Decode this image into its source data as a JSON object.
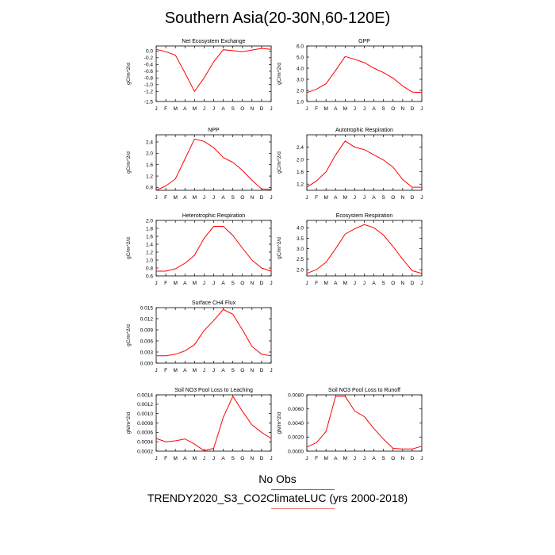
{
  "title": "Southern Asia(20-30N,60-120E)",
  "legend": [
    {
      "label": "No Obs",
      "color": "#5a6fd6"
    },
    {
      "label": "TRENDY2020_S3_CO2ClimateLUC (yrs 2000-2018)",
      "color": "#f08080"
    }
  ],
  "chart_data": [
    {
      "type": "line",
      "title": "Net Ecosystem Exchange",
      "ylabel": "gC/m^2/d",
      "categories": [
        "J",
        "F",
        "M",
        "A",
        "M",
        "J",
        "J",
        "A",
        "S",
        "O",
        "N",
        "D",
        "J"
      ],
      "ylim": [
        -1.5,
        0.15
      ],
      "yticks": [
        "0.0",
        "-0.2",
        "-0.4",
        "-0.6",
        "-0.8",
        "-1.0",
        "-1.2",
        "-1.5"
      ],
      "ytick_values": [
        0.0,
        -0.2,
        -0.4,
        -0.6,
        -0.8,
        -1.0,
        -1.2,
        -1.5
      ],
      "series": [
        {
          "color": "#ff0000",
          "values": [
            0.05,
            -0.02,
            -0.12,
            -0.65,
            -1.2,
            -0.8,
            -0.32,
            0.04,
            0.01,
            -0.02,
            0.03,
            0.08,
            0.05
          ]
        }
      ]
    },
    {
      "type": "line",
      "title": "GPP",
      "ylabel": "gC/m^2/d",
      "categories": [
        "J",
        "F",
        "M",
        "A",
        "M",
        "J",
        "J",
        "A",
        "S",
        "O",
        "N",
        "D",
        "J"
      ],
      "ylim": [
        1.0,
        6.0
      ],
      "yticks": [
        "6.0",
        "5.0",
        "4.0",
        "3.0",
        "2.0",
        "1.0"
      ],
      "ytick_values": [
        6.0,
        5.0,
        4.0,
        3.0,
        2.0,
        1.0
      ],
      "series": [
        {
          "color": "#ff0000",
          "values": [
            1.8,
            2.1,
            2.6,
            3.8,
            5.05,
            4.8,
            4.5,
            4.0,
            3.6,
            3.1,
            2.4,
            1.85,
            1.8
          ]
        }
      ]
    },
    {
      "type": "line",
      "title": "NPP",
      "ylabel": "gC/m^2/d",
      "categories": [
        "J",
        "F",
        "M",
        "A",
        "M",
        "J",
        "J",
        "A",
        "S",
        "O",
        "N",
        "D",
        "J"
      ],
      "ylim": [
        0.7,
        2.65
      ],
      "yticks": [
        "2.4",
        "2.0",
        "1.6",
        "1.2",
        "0.8"
      ],
      "ytick_values": [
        2.4,
        2.0,
        1.6,
        1.2,
        0.8
      ],
      "series": [
        {
          "color": "#ff0000",
          "values": [
            0.7,
            0.85,
            1.1,
            1.8,
            2.5,
            2.42,
            2.2,
            1.85,
            1.68,
            1.4,
            1.05,
            0.75,
            0.72
          ]
        }
      ]
    },
    {
      "type": "line",
      "title": "Autotrophic Respiration",
      "ylabel": "gC/m^2/d",
      "categories": [
        "J",
        "F",
        "M",
        "A",
        "M",
        "J",
        "J",
        "A",
        "S",
        "O",
        "N",
        "D",
        "J"
      ],
      "ylim": [
        1.0,
        2.8
      ],
      "yticks": [
        "2.4",
        "2.0",
        "1.6",
        "1.2"
      ],
      "ytick_values": [
        2.4,
        2.0,
        1.6,
        1.2
      ],
      "series": [
        {
          "color": "#ff0000",
          "values": [
            1.1,
            1.3,
            1.6,
            2.15,
            2.6,
            2.4,
            2.32,
            2.15,
            1.98,
            1.75,
            1.35,
            1.1,
            1.1
          ]
        }
      ]
    },
    {
      "type": "line",
      "title": "Heterotrophic Respiration",
      "ylabel": "gC/m^2/d",
      "categories": [
        "J",
        "F",
        "M",
        "A",
        "M",
        "J",
        "J",
        "A",
        "S",
        "O",
        "N",
        "D",
        "J"
      ],
      "ylim": [
        0.6,
        2.0
      ],
      "yticks": [
        "2.0",
        "1.8",
        "1.6",
        "1.4",
        "1.2",
        "1.0",
        "0.8",
        "0.6"
      ],
      "ytick_values": [
        2.0,
        1.8,
        1.6,
        1.4,
        1.2,
        1.0,
        0.8,
        0.6
      ],
      "series": [
        {
          "color": "#ff0000",
          "values": [
            0.72,
            0.72,
            0.78,
            0.92,
            1.12,
            1.55,
            1.85,
            1.85,
            1.62,
            1.3,
            1.0,
            0.8,
            0.72
          ]
        }
      ]
    },
    {
      "type": "line",
      "title": "Ecosystem Respiration",
      "ylabel": "gC/m^2/d",
      "categories": [
        "J",
        "F",
        "M",
        "A",
        "M",
        "J",
        "J",
        "A",
        "S",
        "O",
        "N",
        "D",
        "J"
      ],
      "ylim": [
        1.7,
        4.35
      ],
      "yticks": [
        "4.0",
        "3.5",
        "3.0",
        "2.5",
        "2.0"
      ],
      "ytick_values": [
        4.0,
        3.5,
        3.0,
        2.5,
        2.0
      ],
      "series": [
        {
          "color": "#ff0000",
          "values": [
            1.82,
            2.0,
            2.35,
            3.0,
            3.7,
            3.95,
            4.15,
            4.0,
            3.65,
            3.1,
            2.5,
            1.95,
            1.82
          ]
        }
      ]
    },
    {
      "type": "line",
      "title": "Surface CH4 Flux",
      "ylabel": "gC/m^2/d",
      "categories": [
        "J",
        "F",
        "M",
        "A",
        "M",
        "J",
        "J",
        "A",
        "S",
        "O",
        "N",
        "D",
        "J"
      ],
      "ylim": [
        0.0,
        0.015
      ],
      "yticks": [
        "0.015",
        "0.012",
        "0.009",
        "0.006",
        "0.003",
        "0.000"
      ],
      "ytick_values": [
        0.015,
        0.012,
        0.009,
        0.006,
        0.003,
        0.0
      ],
      "series": [
        {
          "color": "#ff0000",
          "values": [
            0.002,
            0.002,
            0.0024,
            0.0033,
            0.005,
            0.0088,
            0.0115,
            0.0145,
            0.0132,
            0.009,
            0.0045,
            0.0024,
            0.002
          ]
        }
      ]
    },
    {
      "type": "line",
      "title": "Soil NO3 Pool Loss to Leaching",
      "ylabel": "gN/m^2/d",
      "categories": [
        "J",
        "F",
        "M",
        "A",
        "M",
        "J",
        "J",
        "A",
        "S",
        "O",
        "N",
        "D",
        "J"
      ],
      "ylim": [
        0.0002,
        0.0014
      ],
      "yticks": [
        "0.0014",
        "0.0012",
        "0.0010",
        "0.0008",
        "0.0006",
        "0.0004",
        "0.0002"
      ],
      "ytick_values": [
        0.0014,
        0.0012,
        0.001,
        0.0008,
        0.0006,
        0.0004,
        0.0002
      ],
      "series": [
        {
          "color": "#ff0000",
          "values": [
            0.00047,
            0.0004,
            0.00042,
            0.00046,
            0.00035,
            0.00021,
            0.00026,
            0.00092,
            0.00137,
            0.00105,
            0.00076,
            0.0006,
            0.00047
          ]
        }
      ]
    },
    {
      "type": "line",
      "title": "Soil NO3 Pool Loss to Runoff",
      "ylabel": "gN/m^2/d",
      "categories": [
        "J",
        "F",
        "M",
        "A",
        "M",
        "J",
        "J",
        "A",
        "S",
        "O",
        "N",
        "D",
        "J"
      ],
      "ylim": [
        0.0,
        0.008
      ],
      "yticks": [
        "0.0080",
        "0.0060",
        "0.0040",
        "0.0020",
        "0.0000"
      ],
      "ytick_values": [
        0.008,
        0.006,
        0.004,
        0.002,
        0.0
      ],
      "series": [
        {
          "color": "#ff0000",
          "values": [
            0.0006,
            0.0012,
            0.0028,
            0.0078,
            0.0078,
            0.0057,
            0.0049,
            0.0032,
            0.0017,
            0.0004,
            0.0003,
            0.0003,
            0.0007
          ]
        }
      ]
    }
  ]
}
